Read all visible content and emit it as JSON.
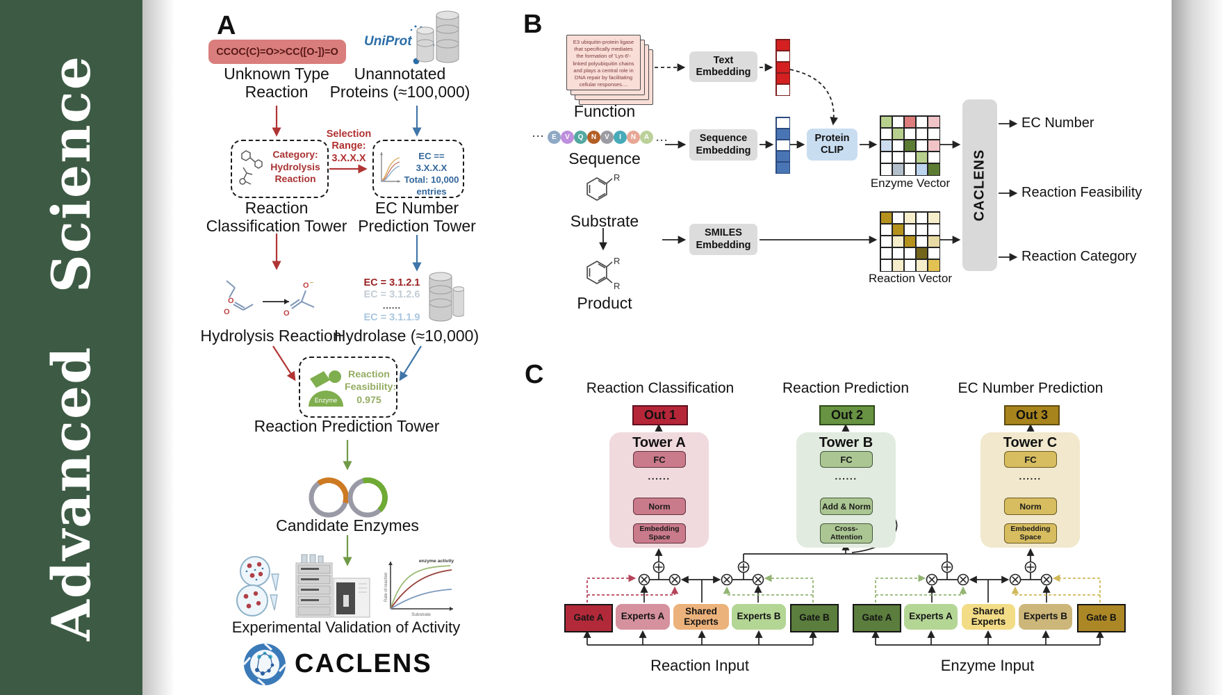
{
  "colors": {
    "sidebar_green": "#3d5b44",
    "red_accent": "#b03434",
    "blue_accent": "#3f75a8",
    "green_accent": "#6f9a48",
    "smiles_box": "#d97e7c",
    "uniprot_blue": "#2a6da8",
    "gray_box": "#dcdcdc",
    "clip_blue": "#c9ddf0",
    "out1_red": "#b52638",
    "out2_green": "#679342",
    "out3_gold": "#a8841c"
  },
  "sidebar": {
    "journal": "Advanced Science"
  },
  "panelA": {
    "label": "A",
    "smiles": "CCOC(C)=O>>CC([O-])=O",
    "unknown_line1": "Unknown Type",
    "unknown_line2": "Reaction",
    "uniprot": "UniProt",
    "unannotated_line1": "Unannotated",
    "unannotated_line2": "Proteins (≈100,000)",
    "category_lines": [
      "Category:",
      "Hydrolysis",
      "Reaction"
    ],
    "selection_lines": [
      "Selection",
      "Range:",
      "3.X.X.X"
    ],
    "ec_filter_lines": [
      "EC == 3.X.X.X",
      "Total: 10,000",
      "entries"
    ],
    "classification_tower_line1": "Reaction",
    "classification_tower_line2": "Classification Tower",
    "ec_tower_line1": "EC Number",
    "ec_tower_line2": "Prediction Tower",
    "hydrolysis": "Hydrolysis Reaction",
    "ec_list": [
      "EC = 3.1.2.1",
      "EC = 3.1.2.6",
      "......",
      "EC = 3.1.1.9"
    ],
    "hydrolase": "Hydrolase (≈10,000)",
    "enzyme_badge": "Enzyme",
    "feasibility_lines": [
      "Reaction",
      "Feasibility:",
      "0.975"
    ],
    "prediction_tower": "Reaction Prediction Tower",
    "candidate": "Candidate Enzymes",
    "kinetics": {
      "ylabel": "Rate of reaction",
      "xlabel": "Substrate",
      "annotation": "enzyme activity"
    },
    "validation": "Experimental Validation of Activity",
    "logo_text": "CACLENS"
  },
  "panelB": {
    "label": "B",
    "function_card": "E3 ubiquitin-protein ligase that specifically mediates the formation of 'Lys-6'-linked polyubiquitin chains and plays a central role in DNA repair by facilitating cellular responses....",
    "function": "Function",
    "dots_left": "···",
    "dots_right": "···",
    "beads": [
      {
        "letter": "E",
        "color": "#8fa9c4"
      },
      {
        "letter": "V",
        "color": "#bd8fdc"
      },
      {
        "letter": "Q",
        "color": "#53a8a0"
      },
      {
        "letter": "N",
        "color": "#b35f26"
      },
      {
        "letter": "V",
        "color": "#9b9ba3"
      },
      {
        "letter": "I",
        "color": "#47aab8"
      },
      {
        "letter": "N",
        "color": "#e8a795"
      },
      {
        "letter": "A",
        "color": "#bcd09b"
      }
    ],
    "sequence": "Sequence",
    "substituent": "R",
    "substrate": "Substrate",
    "product": "Product",
    "text_embedding_line1": "Text",
    "text_embedding_line2": "Embedding",
    "seq_embedding_line1": "Sequence",
    "seq_embedding_line2": "Embedding",
    "smiles_embedding_line1": "SMILES",
    "smiles_embedding_line2": "Embedding",
    "protein_clip_line1": "Protein",
    "protein_clip_line2": "CLIP",
    "text_vector_cells": [
      "#d42020",
      "#ffffff",
      "#d42020",
      "#d42020",
      "#ffffff"
    ],
    "seq_vector_cells": [
      "#ffffff",
      "#4a75b5",
      "#ffffff",
      "#4a75b5",
      "#4a75b5"
    ],
    "enzyme_vector_label": "Enzyme Vector",
    "reaction_vector_label": "Reaction Vector",
    "enzyme_vector_cells": [
      [
        "#b8d08e",
        "#ffffff",
        "#dd7d7d",
        "#ffffff",
        "#f0c3c6"
      ],
      [
        "#ffffff",
        "#b8d08e",
        "#ffffff",
        "#ffffff",
        "#ffffff"
      ],
      [
        "#ccdcee",
        "#ffffff",
        "#5d7c33",
        "#ffffff",
        "#f0c3c6"
      ],
      [
        "#ffffff",
        "#ffffff",
        "#ffffff",
        "#b8d08e",
        "#ffffff"
      ],
      [
        "#ffffff",
        "#b3bfca",
        "#ffffff",
        "#bcd4ee",
        "#5d7c33"
      ]
    ],
    "reaction_vector_cells": [
      [
        "#b5921e",
        "#ffffff",
        "#f6edcb",
        "#ffffff",
        "#f6edcb"
      ],
      [
        "#ffffff",
        "#b5921e",
        "#ffffff",
        "#ffffff",
        "#ffffff"
      ],
      [
        "#ffffff",
        "#f6edcb",
        "#b5921e",
        "#ffffff",
        "#e7d9a4"
      ],
      [
        "#ffffff",
        "#ffffff",
        "#ffffff",
        "#74651c",
        "#ffffff"
      ],
      [
        "#ffffff",
        "#f6edcb",
        "#ffffff",
        "#f6edcb",
        "#e3c254"
      ]
    ],
    "caclens": "CACLENS",
    "outputs": [
      "EC Number",
      "Reaction Feasibility",
      "Reaction Category"
    ]
  },
  "panelC": {
    "label": "C",
    "headers": [
      "Reaction Classification",
      "Reaction Prediction",
      "EC Number Prediction"
    ],
    "outs": [
      "Out 1",
      "Out 2",
      "Out 3"
    ],
    "towers": [
      {
        "title": "Tower A",
        "fc": "FC",
        "dots": "......",
        "mid": "Norm",
        "bottom_line1": "Embedding",
        "bottom_line2": "Space"
      },
      {
        "title": "Tower B",
        "fc": "FC",
        "dots": "......",
        "mid": "Add & Norm",
        "bottom_line1": "Cross-",
        "bottom_line2": "Attention"
      },
      {
        "title": "Tower C",
        "fc": "FC",
        "dots": "......",
        "mid": "Norm",
        "bottom_line1": "Embedding",
        "bottom_line2": "Space"
      }
    ],
    "moe_left": {
      "boxes": [
        "Gate A",
        "Experts A",
        "Shared Experts",
        "Experts B",
        "Gate B"
      ],
      "input": "Reaction Input"
    },
    "moe_right": {
      "boxes": [
        "Gate A",
        "Experts A",
        "Shared Experts",
        "Experts B",
        "Gate B"
      ],
      "input": "Enzyme Input"
    }
  }
}
